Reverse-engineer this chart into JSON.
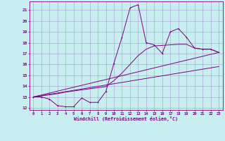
{
  "xlabel": "Windchill (Refroidissement éolien,°C)",
  "bg_color": "#c8eef0",
  "line_color": "#800080",
  "grid_color": "#a0a0cc",
  "xlim": [
    -0.5,
    23.5
  ],
  "ylim": [
    11.8,
    21.8
  ],
  "yticks": [
    12,
    13,
    14,
    15,
    16,
    17,
    18,
    19,
    20,
    21
  ],
  "xticks": [
    0,
    1,
    2,
    3,
    4,
    5,
    6,
    7,
    8,
    9,
    10,
    11,
    12,
    13,
    14,
    15,
    16,
    17,
    18,
    19,
    20,
    21,
    22,
    23
  ],
  "series1_x": [
    0,
    1,
    2,
    3,
    4,
    5,
    6,
    7,
    8,
    9,
    10,
    11,
    12,
    13,
    14,
    15,
    16,
    17,
    18,
    19,
    20,
    21,
    22,
    23
  ],
  "series1_y": [
    13.0,
    13.0,
    12.8,
    12.2,
    12.1,
    12.1,
    12.9,
    12.5,
    12.5,
    13.5,
    16.1,
    18.5,
    21.2,
    21.5,
    18.0,
    17.8,
    17.0,
    19.0,
    19.3,
    18.5,
    17.5,
    17.4,
    17.4,
    17.1
  ],
  "series2_x": [
    0,
    1,
    2,
    3,
    4,
    5,
    6,
    7,
    8,
    9,
    10,
    11,
    12,
    13,
    14,
    15,
    16,
    17,
    18,
    19,
    20,
    21,
    22,
    23
  ],
  "series2_y": [
    13.0,
    13.1,
    13.2,
    13.3,
    13.45,
    13.55,
    13.65,
    13.75,
    13.85,
    13.95,
    14.5,
    15.2,
    16.0,
    16.8,
    17.4,
    17.7,
    17.75,
    17.8,
    17.85,
    17.85,
    17.5,
    17.4,
    17.4,
    17.1
  ],
  "series3_x": [
    0,
    23
  ],
  "series3_y": [
    13.0,
    17.1
  ],
  "series4_x": [
    0,
    23
  ],
  "series4_y": [
    13.0,
    15.8
  ]
}
